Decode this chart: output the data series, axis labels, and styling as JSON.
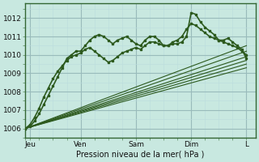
{
  "xlabel": "Pression niveau de la mer( hPa )",
  "bg_color": "#c8e8e0",
  "grid_major_color": "#99bbbb",
  "grid_minor_color": "#bbdddd",
  "line_color": "#2d5a1e",
  "ylim": [
    1005.5,
    1012.8
  ],
  "xlim": [
    0,
    100
  ],
  "xtick_positions": [
    2,
    24,
    48,
    72,
    96
  ],
  "xtick_labels": [
    "Jeu",
    "Ven",
    "Sam",
    "Dim",
    "L"
  ],
  "ytick_positions": [
    1006,
    1007,
    1008,
    1009,
    1010,
    1011,
    1012
  ],
  "figsize": [
    3.2,
    2.0
  ],
  "dpi": 100,
  "ensemble_lines": [
    {
      "x": [
        0,
        96
      ],
      "y": [
        1006.0,
        1010.5
      ]
    },
    {
      "x": [
        0,
        96
      ],
      "y": [
        1006.0,
        1010.2
      ]
    },
    {
      "x": [
        0,
        96
      ],
      "y": [
        1006.0,
        1009.9
      ]
    },
    {
      "x": [
        0,
        96
      ],
      "y": [
        1006.0,
        1009.7
      ]
    },
    {
      "x": [
        0,
        96
      ],
      "y": [
        1006.0,
        1009.5
      ]
    },
    {
      "x": [
        0,
        96
      ],
      "y": [
        1006.0,
        1009.3
      ]
    }
  ],
  "wavy_line1_x": [
    0,
    2,
    4,
    6,
    8,
    10,
    12,
    14,
    16,
    18,
    20,
    22,
    24,
    26,
    28,
    30,
    32,
    34,
    36,
    38,
    40,
    42,
    44,
    46,
    48,
    50,
    52,
    54,
    56,
    58,
    60,
    62,
    64,
    66,
    68,
    70,
    72,
    74,
    76,
    78,
    80,
    82,
    84,
    86,
    88,
    90,
    92,
    94,
    96
  ],
  "wavy_line1_y": [
    1006.0,
    1006.1,
    1006.4,
    1006.8,
    1007.3,
    1007.8,
    1008.3,
    1008.8,
    1009.3,
    1009.8,
    1010.0,
    1010.2,
    1010.2,
    1010.5,
    1010.8,
    1011.0,
    1011.1,
    1011.0,
    1010.8,
    1010.6,
    1010.8,
    1010.9,
    1011.0,
    1010.8,
    1010.6,
    1010.5,
    1010.8,
    1011.0,
    1011.0,
    1010.8,
    1010.5,
    1010.5,
    1010.6,
    1010.6,
    1010.7,
    1011.0,
    1012.3,
    1012.2,
    1011.8,
    1011.5,
    1011.3,
    1011.1,
    1010.8,
    1010.8,
    1010.9,
    1010.7,
    1010.5,
    1010.3,
    1009.8
  ],
  "wavy_line2_x": [
    0,
    2,
    4,
    6,
    8,
    10,
    12,
    14,
    16,
    18,
    20,
    22,
    24,
    26,
    28,
    30,
    32,
    34,
    36,
    38,
    40,
    42,
    44,
    46,
    48,
    50,
    52,
    54,
    56,
    58,
    60,
    62,
    64,
    66,
    68,
    70,
    72,
    74,
    76,
    78,
    80,
    82,
    84,
    86,
    88,
    90,
    92,
    94,
    96
  ],
  "wavy_line2_y": [
    1006.0,
    1006.2,
    1006.6,
    1007.1,
    1007.7,
    1008.2,
    1008.7,
    1009.1,
    1009.4,
    1009.7,
    1009.9,
    1010.0,
    1010.1,
    1010.3,
    1010.4,
    1010.2,
    1010.0,
    1009.8,
    1009.6,
    1009.7,
    1009.9,
    1010.1,
    1010.2,
    1010.3,
    1010.4,
    1010.3,
    1010.5,
    1010.7,
    1010.7,
    1010.6,
    1010.5,
    1010.5,
    1010.7,
    1010.8,
    1011.0,
    1011.4,
    1011.7,
    1011.6,
    1011.4,
    1011.2,
    1011.0,
    1010.9,
    1010.8,
    1010.7,
    1010.6,
    1010.5,
    1010.4,
    1010.2,
    1010.0
  ]
}
